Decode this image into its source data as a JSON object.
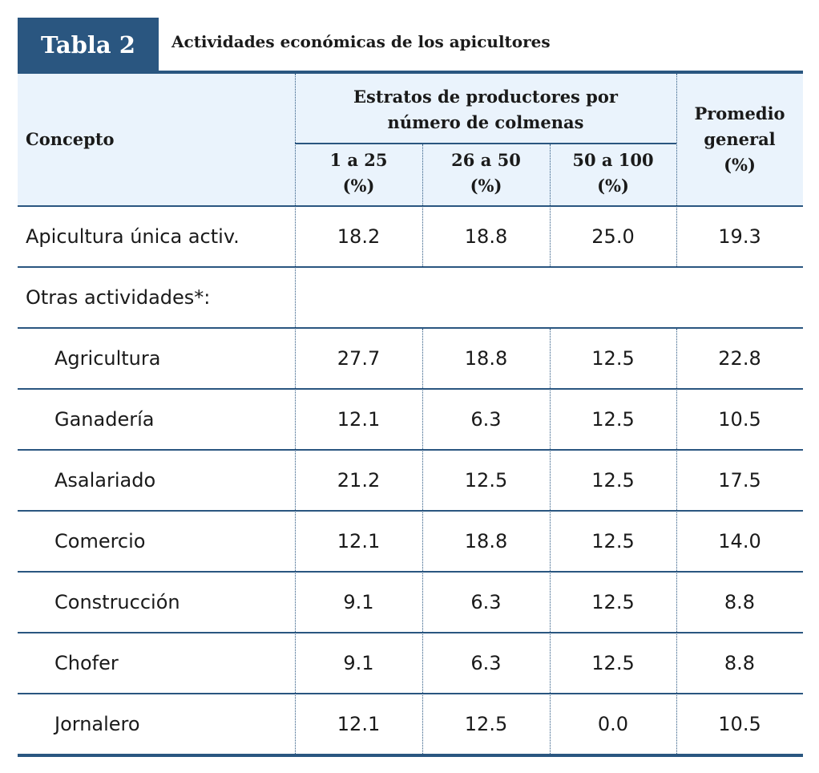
{
  "table": {
    "tag": "Tabla 2",
    "caption": "Actividades económicas de los apicultores",
    "headers": {
      "concept": "Concepto",
      "strata_line1": "Estratos de productores por",
      "strata_line2": "número de colmenas",
      "col1_range": "1 a 25",
      "col2_range": "26 a 50",
      "col3_range": "50 a 100",
      "pct": "(%)",
      "avg_line1": "Promedio",
      "avg_line2": "general",
      "avg_line3": "(%)"
    },
    "rows": [
      {
        "label": "Apicultura única activ.",
        "values": [
          "18.2",
          "18.8",
          "25.0",
          "19.3"
        ]
      },
      {
        "label": "Otras actividades*:"
      },
      {
        "label": "Agricultura",
        "values": [
          "27.7",
          "18.8",
          "12.5",
          "22.8"
        ]
      },
      {
        "label": "Ganadería",
        "values": [
          "12.1",
          "6.3",
          "12.5",
          "10.5"
        ]
      },
      {
        "label": "Asalariado",
        "values": [
          "21.2",
          "12.5",
          "12.5",
          "17.5"
        ]
      },
      {
        "label": "Comercio",
        "values": [
          "12.1",
          "18.8",
          "12.5",
          "14.0"
        ]
      },
      {
        "label": "Construcción",
        "values": [
          "9.1",
          "6.3",
          "12.5",
          "8.8"
        ]
      },
      {
        "label": "Chofer",
        "values": [
          "9.1",
          "6.3",
          "12.5",
          "8.8"
        ]
      },
      {
        "label": "Jornalero",
        "values": [
          "12.1",
          "12.5",
          "0.0",
          "10.5"
        ]
      }
    ]
  }
}
